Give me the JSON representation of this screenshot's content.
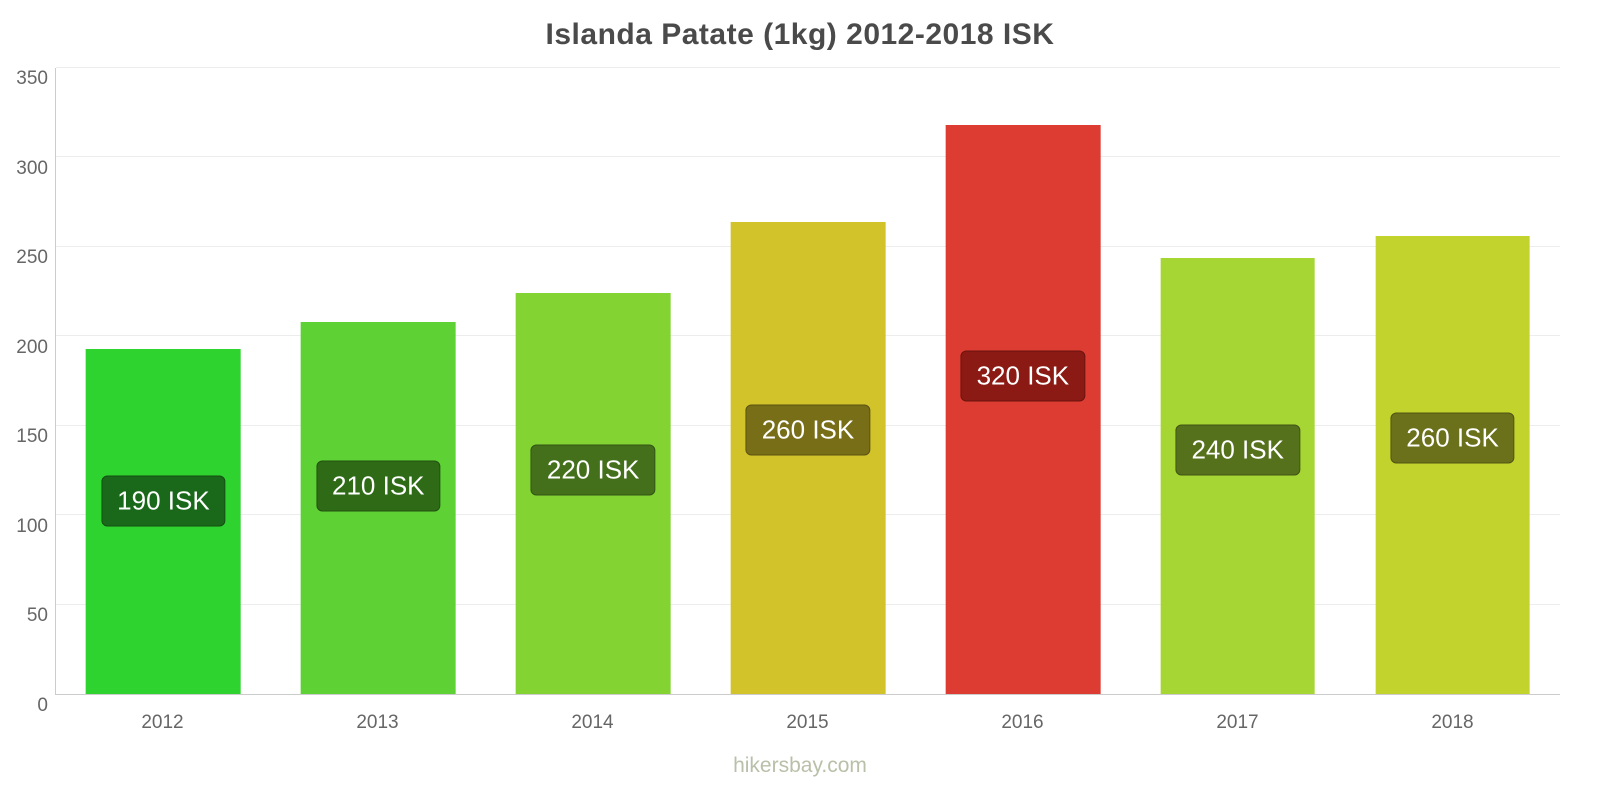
{
  "title": "Islanda Patate (1kg) 2012-2018 ISK",
  "watermark": "hikersbay.com",
  "chart_data": {
    "type": "bar",
    "title": "Islanda Patate (1kg) 2012-2018 ISK",
    "categories": [
      "2012",
      "2013",
      "2014",
      "2015",
      "2016",
      "2017",
      "2018"
    ],
    "values": [
      193,
      208,
      224,
      264,
      318,
      244,
      256
    ],
    "value_labels": [
      "190 ISK",
      "210 ISK",
      "220 ISK",
      "260 ISK",
      "320 ISK",
      "240 ISK",
      "260 ISK"
    ],
    "bar_colors": [
      "#2fd32f",
      "#5ed135",
      "#83d433",
      "#d3c32b",
      "#dc3c32",
      "#a6d633",
      "#c3d32e"
    ],
    "label_bg_colors": [
      "#1a691a",
      "#2f6b17",
      "#44701c",
      "#786e18",
      "#8c1a14",
      "#56711c",
      "#6b701a"
    ],
    "xlabel": "",
    "ylabel": "",
    "ylim": [
      0,
      350
    ],
    "yticks": [
      0,
      50,
      100,
      150,
      200,
      250,
      300,
      350
    ],
    "grid": true,
    "legend": "none"
  }
}
